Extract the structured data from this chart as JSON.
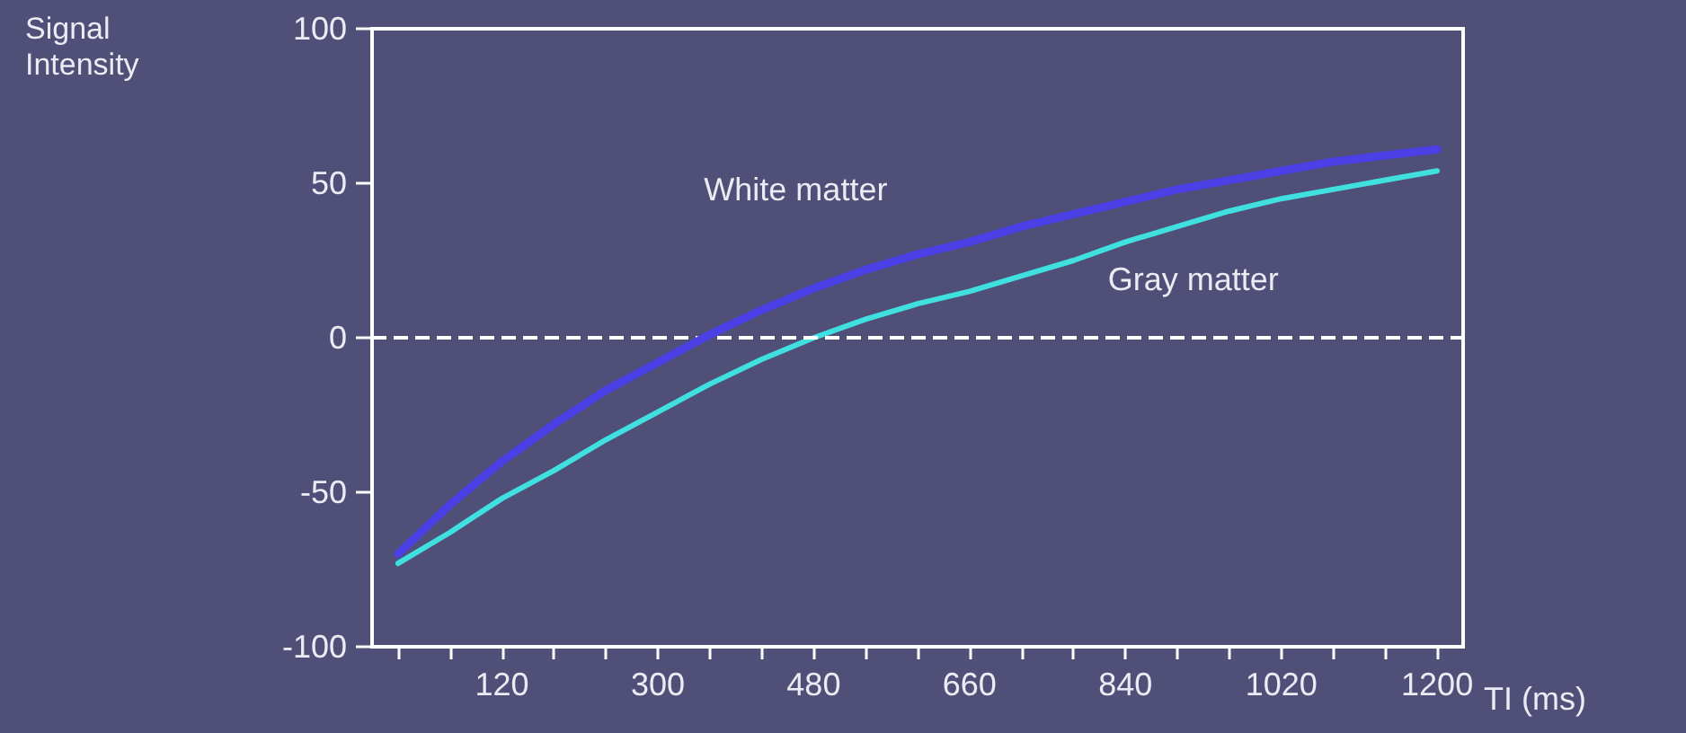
{
  "chart_data": {
    "type": "line",
    "xlabel": "TI (ms)",
    "ylabel": "Signal Intensity",
    "x": [
      0,
      60,
      120,
      180,
      240,
      300,
      360,
      420,
      480,
      540,
      600,
      660,
      720,
      780,
      840,
      900,
      960,
      1020,
      1080,
      1140,
      1200
    ],
    "series": [
      {
        "name": "White matter",
        "color": "#4b3fe6",
        "values": [
          -70,
          -54,
          -40,
          -28,
          -17,
          -8,
          1,
          9,
          16,
          22,
          27,
          31,
          36,
          40,
          44,
          48,
          51,
          54,
          57,
          59,
          61
        ]
      },
      {
        "name": "Gray matter",
        "color": "#40e0e0",
        "values": [
          -73,
          -63,
          -52,
          -43,
          -33,
          -24,
          -15,
          -7,
          0,
          6,
          11,
          15,
          20,
          25,
          31,
          36,
          41,
          45,
          48,
          51,
          54
        ]
      }
    ],
    "xlim": [
      -30,
      1230
    ],
    "xticks": [
      {
        "value": 0,
        "label": null
      },
      {
        "value": 60,
        "label": null
      },
      {
        "value": 120,
        "label": "120"
      },
      {
        "value": 180,
        "label": null
      },
      {
        "value": 240,
        "label": null
      },
      {
        "value": 300,
        "label": "300"
      },
      {
        "value": 360,
        "label": null
      },
      {
        "value": 420,
        "label": null
      },
      {
        "value": 480,
        "label": "480"
      },
      {
        "value": 540,
        "label": null
      },
      {
        "value": 600,
        "label": null
      },
      {
        "value": 660,
        "label": "660"
      },
      {
        "value": 720,
        "label": null
      },
      {
        "value": 780,
        "label": null
      },
      {
        "value": 840,
        "label": "840"
      },
      {
        "value": 900,
        "label": null
      },
      {
        "value": 960,
        "label": null
      },
      {
        "value": 1020,
        "label": "1020"
      },
      {
        "value": 1080,
        "label": null
      },
      {
        "value": 1140,
        "label": null
      },
      {
        "value": 1200,
        "label": "1200"
      }
    ],
    "ylim": [
      -100,
      100
    ],
    "yticks": [
      -100,
      -50,
      0,
      50,
      100
    ],
    "ref_lines": [
      {
        "axis": "y",
        "value": 0,
        "color": "#ffffff",
        "line_style": "dashed"
      }
    ],
    "legend": false,
    "marker": "none",
    "line_style": "solid"
  }
}
